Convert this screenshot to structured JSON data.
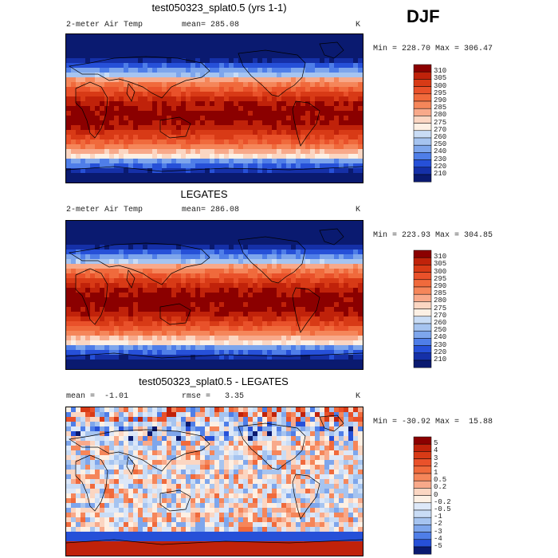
{
  "season": "DJF",
  "panels": [
    {
      "title": "test050323_splat0.5 (yrs 1-1)",
      "left_text": "2-meter Air Temp",
      "center_text": "mean= 285.08",
      "units": "K",
      "minmax": "Min = 228.70 Max = 306.47",
      "legend_labels": [
        "310",
        "305",
        "300",
        "295",
        "290",
        "285",
        "280",
        "275",
        "270",
        "260",
        "250",
        "240",
        "230",
        "220",
        "210"
      ],
      "legend_colors": [
        "#8b0000",
        "#c0220a",
        "#d83a16",
        "#e9512a",
        "#f06a3c",
        "#f5865a",
        "#f8a98a",
        "#fbd6c2",
        "#fdf0e4",
        "#c9dcf5",
        "#a6c4f0",
        "#7ea6ec",
        "#4f7ee8",
        "#2650d8",
        "#1530a8",
        "#0a1a70"
      ],
      "kind": "temp"
    },
    {
      "title": "LEGATES",
      "left_text": "2-meter Air Temp",
      "center_text": "mean= 286.08",
      "units": "K",
      "minmax": "Min = 223.93 Max = 304.85",
      "legend_labels": [
        "310",
        "305",
        "300",
        "295",
        "290",
        "285",
        "280",
        "275",
        "270",
        "260",
        "250",
        "240",
        "230",
        "220",
        "210"
      ],
      "legend_colors": [
        "#8b0000",
        "#c0220a",
        "#d83a16",
        "#e9512a",
        "#f06a3c",
        "#f5865a",
        "#f8a98a",
        "#fbd6c2",
        "#fdf0e4",
        "#c9dcf5",
        "#a6c4f0",
        "#7ea6ec",
        "#4f7ee8",
        "#2650d8",
        "#1530a8",
        "#0a1a70"
      ],
      "kind": "temp"
    },
    {
      "title": "test050323_splat0.5 - LEGATES",
      "left_text": "mean =  -1.01",
      "center_text": "rmse =   3.35",
      "units": "K",
      "minmax": "Min = -30.92 Max =  15.88",
      "legend_labels": [
        "5",
        "4",
        "3",
        "2",
        "1",
        "0.5",
        "0.2",
        "0",
        "-0.2",
        "-0.5",
        "-1",
        "-2",
        "-3",
        "-4",
        "-5"
      ],
      "legend_colors": [
        "#8b0000",
        "#c0220a",
        "#d83a16",
        "#e9512a",
        "#f06a3c",
        "#f5865a",
        "#f8a98a",
        "#fbd6c2",
        "#fdf0e4",
        "#dde8f8",
        "#c9dcf5",
        "#a6c4f0",
        "#7ea6ec",
        "#4f7ee8",
        "#2650d8",
        "#0a1a70"
      ],
      "kind": "diff"
    }
  ],
  "chart_data": [
    {
      "type": "heatmap",
      "title": "test050323_splat0.5 (yrs 1-1)",
      "variable": "2-meter Air Temp",
      "units": "K",
      "mean": 285.08,
      "min": 228.7,
      "max": 306.47,
      "contour_levels": [
        210,
        220,
        230,
        240,
        250,
        260,
        270,
        275,
        280,
        285,
        290,
        295,
        300,
        305,
        310
      ]
    },
    {
      "type": "heatmap",
      "title": "LEGATES",
      "variable": "2-meter Air Temp",
      "units": "K",
      "mean": 286.08,
      "min": 223.93,
      "max": 304.85,
      "contour_levels": [
        210,
        220,
        230,
        240,
        250,
        260,
        270,
        275,
        280,
        285,
        290,
        295,
        300,
        305,
        310
      ]
    },
    {
      "type": "heatmap",
      "title": "test050323_splat0.5 - LEGATES",
      "units": "K",
      "mean": -1.01,
      "rmse": 3.35,
      "min": -30.92,
      "max": 15.88,
      "contour_levels": [
        -5,
        -4,
        -3,
        -2,
        -1,
        -0.5,
        -0.2,
        0,
        0.2,
        0.5,
        1,
        2,
        3,
        4,
        5
      ]
    }
  ]
}
